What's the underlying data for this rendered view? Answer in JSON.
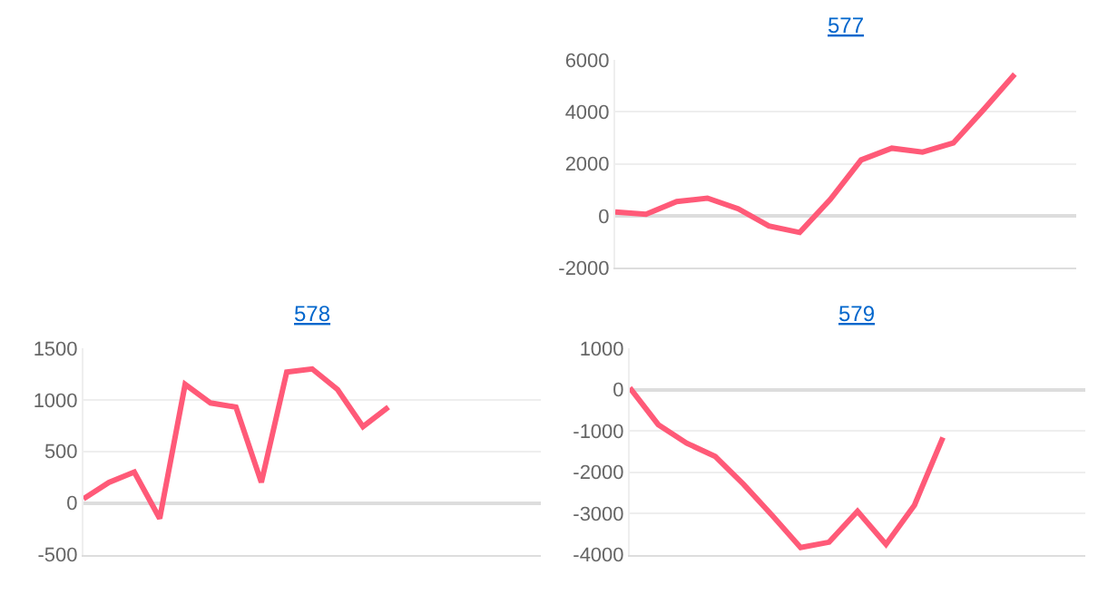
{
  "chart_data": [
    {
      "type": "line",
      "title": "577",
      "categories": [
        null,
        null,
        null,
        null,
        null,
        null,
        null,
        null,
        null,
        null,
        null,
        null,
        null,
        null,
        null,
        null
      ],
      "values": [
        150,
        60,
        550,
        680,
        270,
        -390,
        -640,
        630,
        2150,
        2600,
        2450,
        2800,
        4100,
        5450,
        null,
        null
      ],
      "color": "#ff5a78",
      "ylim": [
        -2000,
        6000
      ],
      "yticks": [
        -2000,
        0,
        2000,
        4000,
        6000
      ],
      "grid": "y",
      "tick_labels": "y"
    },
    {
      "type": "line",
      "title": "578",
      "categories": [
        null,
        null,
        null,
        null,
        null,
        null,
        null,
        null,
        null,
        null,
        null,
        null,
        null,
        null,
        null,
        null,
        null,
        null,
        null
      ],
      "values": [
        40,
        200,
        300,
        -150,
        1150,
        970,
        930,
        200,
        1270,
        1300,
        1100,
        740,
        930,
        null,
        null,
        null,
        null,
        null,
        null
      ],
      "color": "#ff5a78",
      "ylim": [
        -500,
        1500
      ],
      "yticks": [
        -500,
        0,
        500,
        1000,
        1500
      ],
      "grid": "y",
      "tick_labels": "y"
    },
    {
      "type": "line",
      "title": "579",
      "categories": [
        null,
        null,
        null,
        null,
        null,
        null,
        null,
        null,
        null,
        null,
        null,
        null,
        null,
        null,
        null,
        null,
        null
      ],
      "values": [
        40,
        -850,
        -1300,
        -1620,
        -2300,
        -3050,
        -3830,
        -3700,
        -2950,
        -3750,
        -2800,
        -1160,
        null,
        null,
        null,
        null,
        null
      ],
      "color": "#ff5a78",
      "ylim": [
        -4000,
        1000
      ],
      "yticks": [
        -4000,
        -3000,
        -2000,
        -1000,
        0,
        1000
      ],
      "grid": "y",
      "tick_labels": "y"
    }
  ]
}
